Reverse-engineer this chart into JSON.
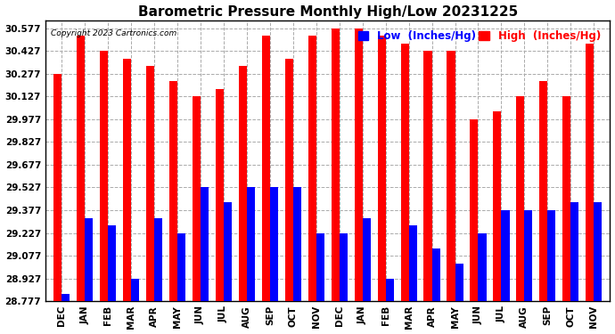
{
  "title": "Barometric Pressure Monthly High/Low 20231225",
  "copyright": "Copyright 2023 Cartronics.com",
  "legend_low": "Low  (Inches/Hg)",
  "legend_high": "High  (Inches/Hg)",
  "months": [
    "DEC",
    "JAN",
    "FEB",
    "MAR",
    "APR",
    "MAY",
    "JUN",
    "JUL",
    "AUG",
    "SEP",
    "OCT",
    "NOV",
    "DEC",
    "JAN",
    "FEB",
    "MAR",
    "APR",
    "MAY",
    "JUN",
    "JUL",
    "AUG",
    "SEP",
    "OCT",
    "NOV"
  ],
  "high_values": [
    30.277,
    30.527,
    30.427,
    30.377,
    30.327,
    30.227,
    30.127,
    30.177,
    30.327,
    30.527,
    30.377,
    30.527,
    30.577,
    30.577,
    30.527,
    30.477,
    30.427,
    30.427,
    29.977,
    30.027,
    30.127,
    30.227,
    30.127,
    30.477
  ],
  "low_values": [
    28.827,
    29.327,
    29.277,
    28.927,
    29.327,
    29.227,
    29.527,
    29.427,
    29.527,
    29.527,
    29.527,
    29.227,
    29.227,
    29.327,
    28.927,
    29.277,
    29.127,
    29.027,
    29.227,
    29.377,
    29.377,
    29.377,
    29.427,
    29.427
  ],
  "ylim_min": 28.777,
  "ylim_max": 30.627,
  "ytick_values": [
    28.777,
    28.927,
    29.077,
    29.227,
    29.377,
    29.527,
    29.677,
    29.827,
    29.977,
    30.127,
    30.277,
    30.427,
    30.577
  ],
  "bar_width": 0.35,
  "high_color": "#ff0000",
  "low_color": "#0000ff",
  "bg_color": "#ffffff",
  "grid_color": "#aaaaaa",
  "title_fontsize": 11,
  "tick_fontsize": 7.5,
  "legend_fontsize": 8.5
}
